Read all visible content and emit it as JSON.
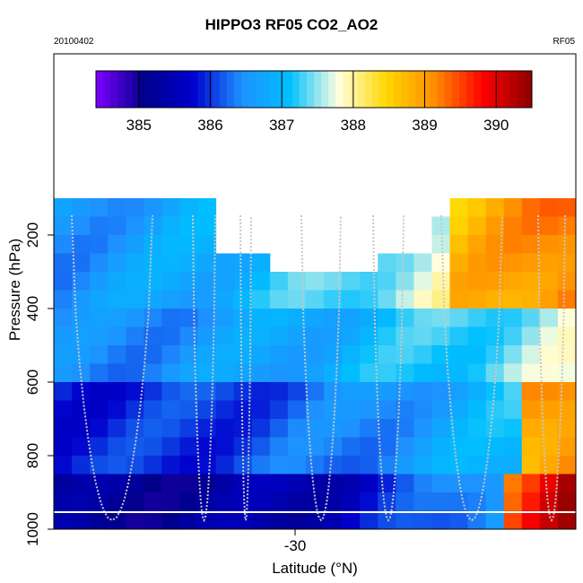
{
  "chart_data": {
    "type": "heatmap",
    "title": "HIPPO3 RF05 CO2_AO2",
    "subtitle_left": "20100402",
    "subtitle_right": "RF05",
    "xlabel": "Latitude (°N)",
    "ylabel": "Pressure (hPa)",
    "x_ticks": [
      -30
    ],
    "y_ticks": [
      200,
      400,
      600,
      800,
      1000
    ],
    "colorbar": {
      "range": [
        384.4,
        390.5
      ],
      "ticks": [
        385,
        386,
        387,
        388,
        389,
        390
      ],
      "tick_labels": [
        "385",
        "386",
        "387",
        "388",
        "389",
        "390"
      ],
      "colors": [
        "#7f00ff",
        "#00008b",
        "#0000cd",
        "#1e90ff",
        "#00bfff",
        "#ffffe0",
        "#ffd700",
        "#ff8c00",
        "#ff0000",
        "#8b0000"
      ]
    },
    "grid": false
  }
}
